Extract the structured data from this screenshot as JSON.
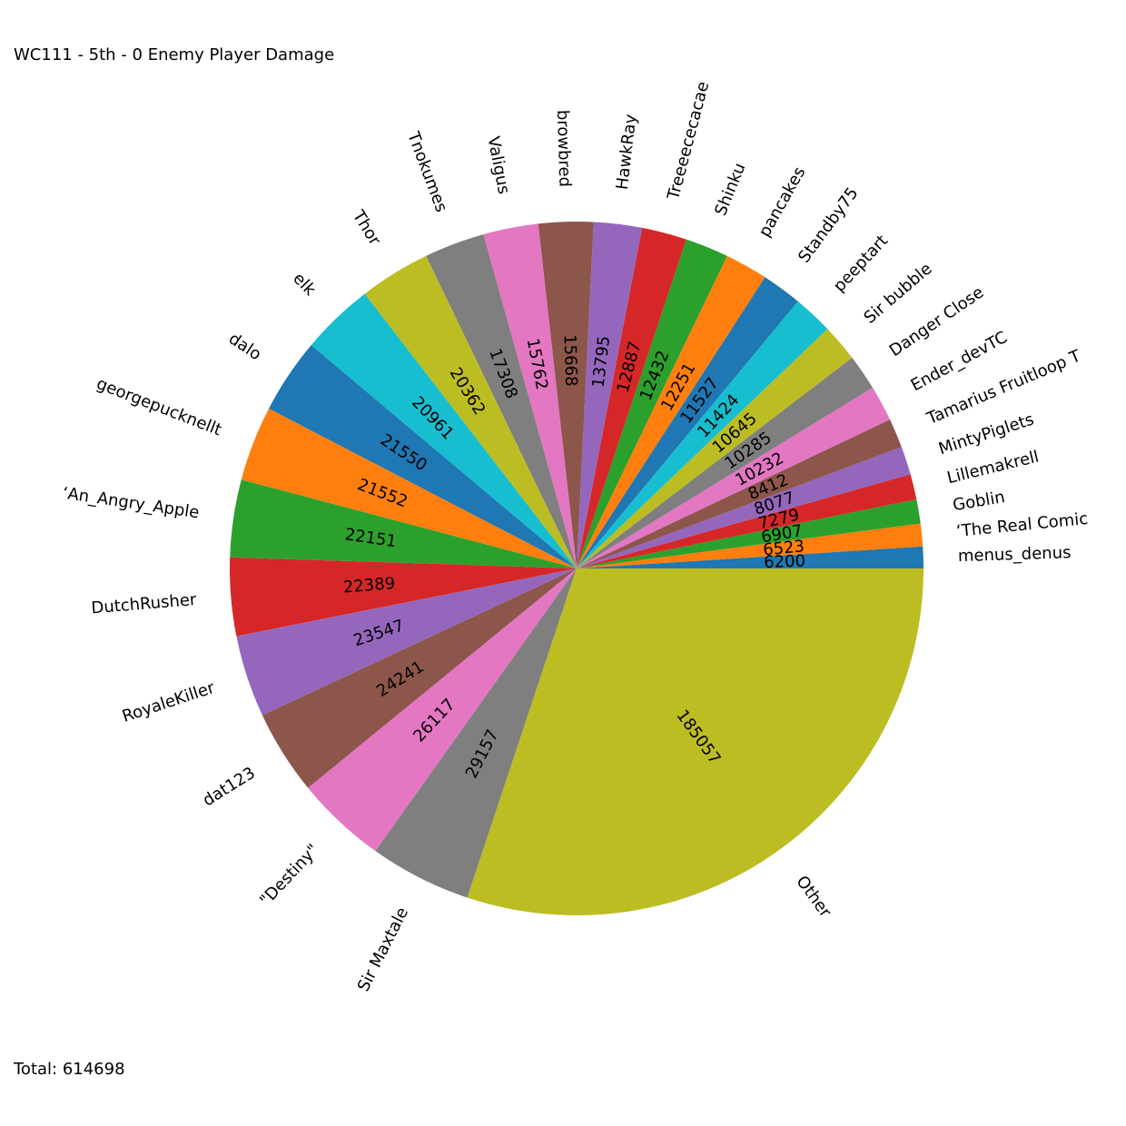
{
  "chart_data": {
    "type": "pie",
    "title": "WC111 - 5th - 0 Enemy Player Damage",
    "total_text": "Total: 614698",
    "categories": [
      "menus_denus",
      "‘The Real Comic",
      "Goblin",
      "Lillemakrell",
      "MintyPiglets",
      "Tamarius Fruitloop T",
      "Ender_devTC",
      "Danger Close",
      "Sir bubble",
      "peeptart",
      "Standby75",
      "pancakes",
      "Shinku",
      "Treeeececacae",
      "HawkRay",
      "browbred",
      "Valigus",
      "Tnokumes",
      "Thor",
      "elk",
      "dalo",
      "georgepucknellt",
      "‘An_Angry_Apple",
      "DutchRusher",
      "RoyaleKiller",
      "dat123",
      "\"Destiny\"",
      "Sir Maxtale",
      "Other"
    ],
    "values": [
      6200,
      6523,
      6907,
      7279,
      8077,
      8412,
      10232,
      10285,
      10645,
      11424,
      11527,
      12251,
      12432,
      12887,
      13795,
      15668,
      15762,
      17308,
      20362,
      20961,
      21550,
      21552,
      22151,
      22389,
      23547,
      24241,
      26117,
      29157,
      185057
    ],
    "value_labels": [
      "6200",
      "6523",
      "6907",
      "7279",
      "8077",
      "8412",
      "10232",
      "10285",
      "10645",
      "11424",
      "11527",
      "12251",
      "12432",
      "12887",
      "13795",
      "15668",
      "15762",
      "17308",
      "20362",
      "20961",
      "21550",
      "21552",
      "22151",
      "22389",
      "23547",
      "24241",
      "26117",
      "29157",
      "185057"
    ],
    "colors": [
      "#1f77b4",
      "#ff7f0e",
      "#2ca02c",
      "#d62728",
      "#9467bd",
      "#8c564b",
      "#e377c2",
      "#7f7f7f",
      "#bcbd22",
      "#17becf"
    ],
    "start_angle": "0 degrees (3 o'clock)",
    "direction": "counterclockwise",
    "legend": "none"
  }
}
